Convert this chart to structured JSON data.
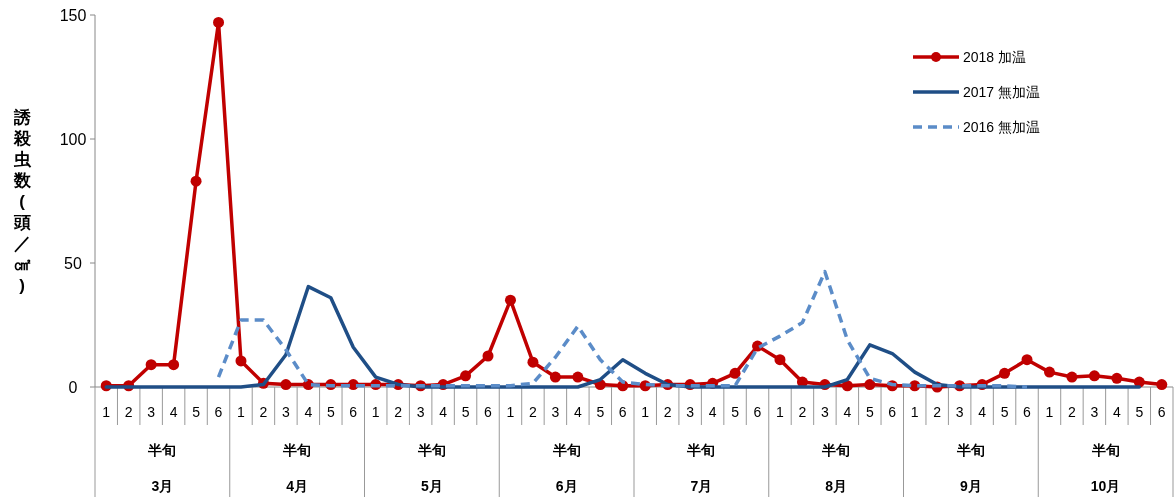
{
  "chart_data": {
    "type": "line",
    "ylabel": "誘殺虫数(頭／㎠)",
    "categories": [
      "1",
      "2",
      "3",
      "4",
      "5",
      "6",
      "1",
      "2",
      "3",
      "4",
      "5",
      "6",
      "1",
      "2",
      "3",
      "4",
      "5",
      "6",
      "1",
      "2",
      "3",
      "4",
      "5",
      "6",
      "1",
      "2",
      "3",
      "4",
      "5",
      "6",
      "1",
      "2",
      "3",
      "4",
      "5",
      "6",
      "1",
      "2",
      "3",
      "4",
      "5",
      "6",
      "1",
      "2",
      "3",
      "4",
      "5",
      "6"
    ],
    "annotations": [
      "半旬",
      "半旬",
      "半旬",
      "半旬",
      "半旬",
      "半旬",
      "半旬",
      "半旬",
      "3月",
      "4月",
      "5月",
      "6月",
      "7月",
      "8月",
      "9月",
      "10月"
    ],
    "ylim": [
      0,
      150
    ],
    "yticks": [
      0,
      50,
      100,
      150
    ],
    "legend": "top right",
    "grid": false,
    "series": [
      {
        "name": "2018  加温",
        "color": "#c00000",
        "marker": "circle",
        "line_style": "solid",
        "values": [
          0.5,
          0.5,
          9,
          9,
          83,
          147,
          10.5,
          1.5,
          1,
          1,
          1,
          1,
          1,
          1,
          0.5,
          1,
          4.5,
          12.5,
          35,
          10,
          4,
          4,
          1,
          0.5,
          0.5,
          1,
          1,
          1.5,
          5.5,
          16.5,
          11,
          2,
          1,
          0.5,
          1,
          0.5,
          0.5,
          0,
          0.5,
          1,
          5.5,
          11,
          6,
          4,
          4.5,
          3.5,
          2,
          1
        ]
      },
      {
        "name": "2017  無加温",
        "color": "#1f4e86",
        "marker": "none",
        "line_style": "solid",
        "values": [
          0,
          0,
          0,
          0,
          0,
          0,
          0,
          1,
          13,
          40.5,
          36,
          16,
          4,
          1,
          0,
          0,
          0,
          0,
          0,
          0,
          0,
          0,
          3,
          11,
          5.5,
          1,
          0,
          0,
          0,
          0,
          0,
          0,
          0,
          3,
          17,
          13.5,
          6,
          1,
          0,
          0,
          0,
          0,
          0,
          0,
          0,
          0,
          0,
          null
        ]
      },
      {
        "name": "2016  無加温",
        "color": "#5b8cc8",
        "marker": "none",
        "line_style": "dashed",
        "values": [
          null,
          null,
          null,
          null,
          null,
          4,
          27,
          27,
          15,
          1,
          0.5,
          0.5,
          0.5,
          0.5,
          0.5,
          0.5,
          0.5,
          0.5,
          0.5,
          1.5,
          12,
          24.5,
          11,
          2,
          1,
          0.5,
          0.5,
          0.5,
          0.5,
          15.7,
          20.5,
          26,
          46.5,
          19,
          3.5,
          1,
          0.5,
          0.5,
          0.5,
          0.5,
          0.5,
          0,
          null,
          null,
          null,
          null,
          null,
          null
        ]
      }
    ]
  }
}
